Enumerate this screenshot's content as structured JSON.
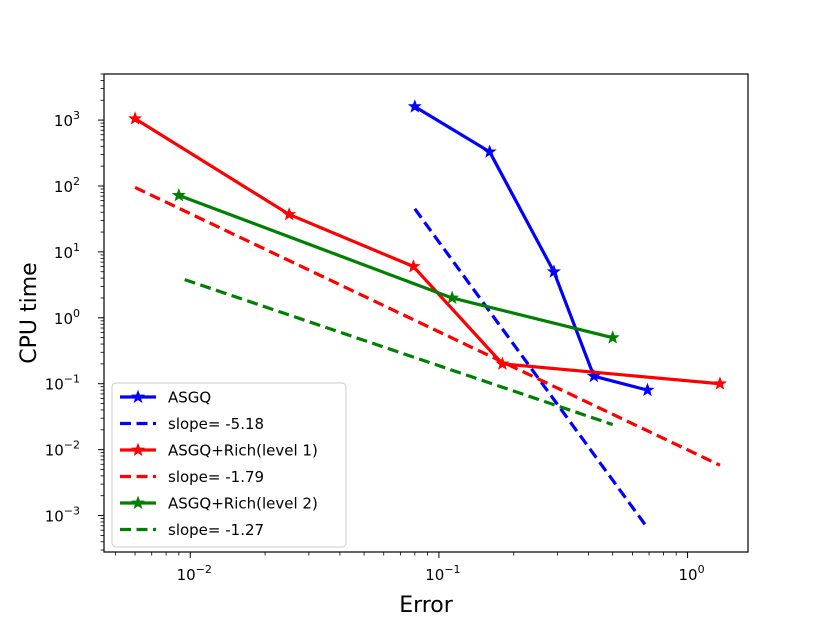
{
  "chart_data": {
    "type": "line",
    "xlabel": "Error",
    "ylabel": "CPU time",
    "xscale": "log",
    "yscale": "log",
    "xlim": [
      0.0045,
      1.75
    ],
    "ylim": [
      0.00028,
      5000
    ],
    "x_ticks": [
      {
        "value": 0.01,
        "base": "10",
        "exp": "−2"
      },
      {
        "value": 0.1,
        "base": "10",
        "exp": "−1"
      },
      {
        "value": 1,
        "base": "10",
        "exp": "0"
      }
    ],
    "y_ticks": [
      {
        "value": 0.001,
        "base": "10",
        "exp": "−3"
      },
      {
        "value": 0.01,
        "base": "10",
        "exp": "−2"
      },
      {
        "value": 0.1,
        "base": "10",
        "exp": "−1"
      },
      {
        "value": 1,
        "base": "10",
        "exp": "0"
      },
      {
        "value": 10,
        "base": "10",
        "exp": "1"
      },
      {
        "value": 100,
        "base": "10",
        "exp": "2"
      },
      {
        "value": 1000,
        "base": "10",
        "exp": "3"
      }
    ],
    "grid": false,
    "legend_position": "lower-left",
    "series": [
      {
        "name": "ASGQ",
        "color": "#0000ff",
        "style": "solid",
        "marker": "star",
        "x": [
          0.08,
          0.16,
          0.29,
          0.42,
          0.69
        ],
        "y": [
          1600,
          330,
          5,
          0.13,
          0.08
        ]
      },
      {
        "name": "slope= -5.18",
        "color": "#0000ff",
        "style": "dashed",
        "marker": "none",
        "x": [
          0.08,
          0.69
        ],
        "y": [
          45,
          0.00065
        ]
      },
      {
        "name": "ASGQ+Rich(level 1)",
        "color": "#ff0000",
        "style": "solid",
        "marker": "star",
        "x": [
          0.006,
          0.025,
          0.079,
          0.18,
          1.35
        ],
        "y": [
          1050,
          37,
          6,
          0.2,
          0.1
        ]
      },
      {
        "name": "slope= -1.79",
        "color": "#ff0000",
        "style": "dashed",
        "marker": "none",
        "x": [
          0.006,
          1.35
        ],
        "y": [
          95,
          0.0058
        ]
      },
      {
        "name": "ASGQ+Rich(level 2)",
        "color": "#008000",
        "style": "solid",
        "marker": "star",
        "x": [
          0.009,
          0.113,
          0.5
        ],
        "y": [
          72,
          2,
          0.5
        ]
      },
      {
        "name": "slope= -1.27",
        "color": "#008000",
        "style": "dashed",
        "marker": "none",
        "x": [
          0.0095,
          0.5
        ],
        "y": [
          3.8,
          0.024
        ]
      }
    ]
  }
}
